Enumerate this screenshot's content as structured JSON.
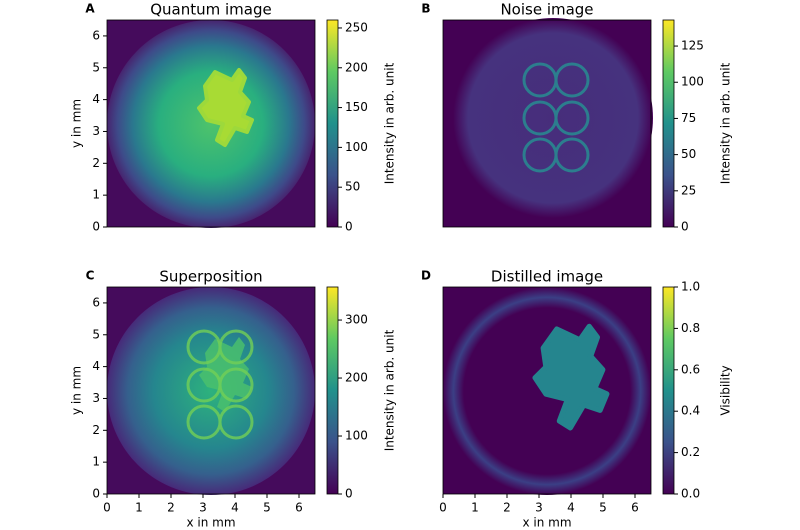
{
  "chart_data": [
    {
      "type": "heatmap",
      "panel": "A",
      "title": "Quantum image",
      "ylabel": "y in mm",
      "ylim": [
        0,
        6.5
      ],
      "yticks": [
        0,
        1,
        2,
        3,
        4,
        5,
        6
      ],
      "colorbar": {
        "label": "Intensity in arb. unit",
        "lim": [
          0,
          260
        ],
        "ticks": [
          0,
          50,
          100,
          150,
          200,
          250
        ]
      }
    },
    {
      "type": "heatmap",
      "panel": "B",
      "title": "Noise image",
      "colorbar": {
        "label": "Intensity in arb. unit",
        "lim": [
          0,
          143
        ],
        "ticks": [
          0,
          25,
          50,
          75,
          100,
          125
        ]
      }
    },
    {
      "type": "heatmap",
      "panel": "C",
      "title": "Superposition",
      "xlabel": "x in mm",
      "ylabel": "y in mm",
      "xlim": [
        0,
        6.5
      ],
      "ylim": [
        0,
        6.5
      ],
      "xticks": [
        0,
        1,
        2,
        3,
        4,
        5,
        6
      ],
      "yticks": [
        0,
        1,
        2,
        3,
        4,
        5,
        6
      ],
      "colorbar": {
        "label": "Intensity in arb. unit",
        "lim": [
          0,
          357
        ],
        "ticks": [
          0,
          100,
          200,
          300
        ]
      }
    },
    {
      "type": "heatmap",
      "panel": "D",
      "title": "Distilled image",
      "xlabel": "x in mm",
      "xlim": [
        0,
        6.5
      ],
      "xticks": [
        0,
        1,
        2,
        3,
        4,
        5,
        6
      ],
      "colorbar": {
        "label": "Visibility",
        "lim": [
          0,
          1
        ],
        "ticks": [
          {
            "value": 0,
            "label": "0.0"
          },
          {
            "value": 0.2,
            "label": "0.2"
          },
          {
            "value": 0.4,
            "label": "0.4"
          },
          {
            "value": 0.6,
            "label": "0.6"
          },
          {
            "value": 0.8,
            "label": "0.8"
          },
          {
            "value": 1,
            "label": "1.0"
          }
        ]
      }
    }
  ]
}
